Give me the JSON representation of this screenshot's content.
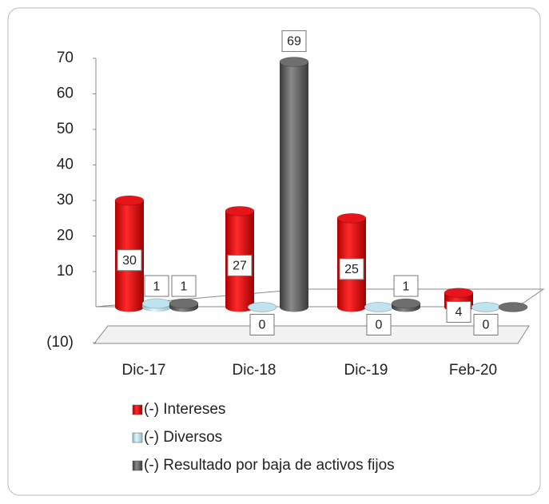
{
  "chart_data": {
    "type": "bar3d",
    "categories": [
      "Dic-17",
      "Dic-18",
      "Dic-19",
      "Feb-20"
    ],
    "series": [
      {
        "name": "(-) Intereses",
        "color": "#e8141b",
        "values": [
          30,
          27,
          25,
          4
        ]
      },
      {
        "name": "(-) Diversos",
        "color": "#bfe3ef",
        "values": [
          1,
          0,
          0,
          0
        ]
      },
      {
        "name": "(-) Resultado por baja de activos fijos",
        "color": "#6e6e6e",
        "values": [
          1,
          69,
          1,
          0
        ],
        "value_labels": [
          "1",
          "69",
          "1",
          null
        ]
      }
    ],
    "ylim": [
      -10,
      70
    ],
    "yticks": [
      {
        "value": -10,
        "label": "(10)"
      },
      10,
      20,
      30,
      40,
      50,
      60,
      70
    ],
    "legend": "bottom"
  }
}
